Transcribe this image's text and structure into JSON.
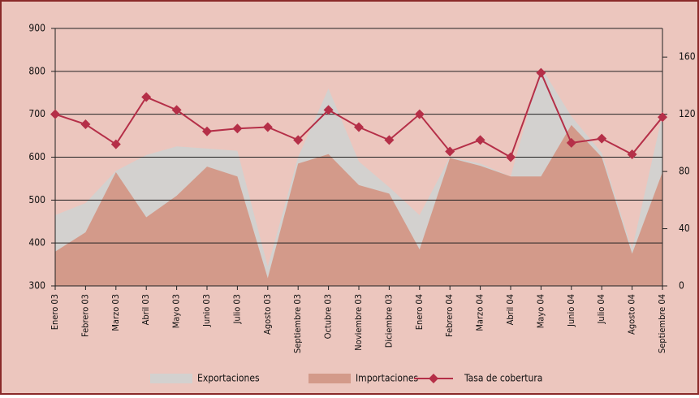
{
  "chart_data": {
    "type": "area-line",
    "categories": [
      "Enero 03",
      "Febrero 03",
      "Marzo 03",
      "Abril 03",
      "Mayo 03",
      "Junio 03",
      "Julio 03",
      "Agosto 03",
      "Septiembre 03",
      "Octubre 03",
      "Noviembre 03",
      "Diciembre 03",
      "Enero 04",
      "Febrero 04",
      "Marzo 04",
      "Abril 04",
      "Mayo 04",
      "Junio 04",
      "Julio 04",
      "Agosto 04",
      "Septiembre 04"
    ],
    "series": [
      {
        "name": "Exportaciones",
        "color": "#d3d1cf",
        "kind": "area",
        "values": [
          465,
          493,
          568,
          605,
          625,
          620,
          615,
          345,
          600,
          760,
          590,
          530,
          465,
          600,
          585,
          555,
          810,
          695,
          610,
          385,
          700
        ]
      },
      {
        "name": "Importaciones",
        "color": "#d39a8a",
        "kind": "area",
        "values": [
          380,
          425,
          565,
          460,
          510,
          578,
          555,
          318,
          585,
          607,
          535,
          515,
          385,
          598,
          580,
          555,
          555,
          675,
          600,
          375,
          565
        ]
      },
      {
        "name": "Tasa de cobertura",
        "color": "#b52f48",
        "kind": "line",
        "axis": "y2",
        "values": [
          120,
          113,
          99,
          132,
          123,
          108,
          110,
          111,
          102,
          123,
          111,
          102,
          120,
          94,
          102,
          90,
          149,
          100,
          103,
          92,
          118
        ]
      }
    ],
    "ylim": [
      300,
      900
    ],
    "yticks": [
      300,
      400,
      500,
      600,
      700,
      800,
      900
    ],
    "y2lim": [
      0,
      180
    ],
    "y2ticks": [
      0,
      40,
      80,
      120,
      160
    ],
    "grid": true,
    "legend": "bottom"
  }
}
